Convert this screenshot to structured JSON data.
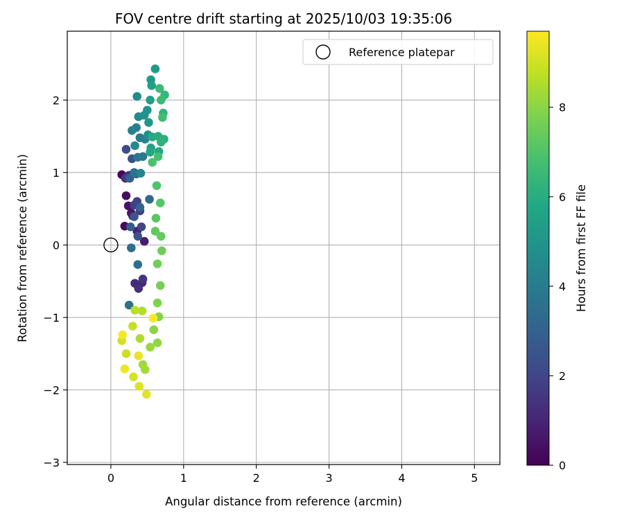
{
  "chart_data": {
    "type": "scatter",
    "title": "FOV centre drift starting at 2025/10/03 19:35:06",
    "xlabel": "Angular distance from reference (arcmin)",
    "ylabel": "Rotation from reference (arcmin)",
    "xlim": [
      -0.6,
      5.35
    ],
    "ylim": [
      -3.03,
      2.95
    ],
    "xticks": [
      0,
      1,
      2,
      3,
      4,
      5
    ],
    "yticks": [
      -3,
      -2,
      -1,
      0,
      1,
      2
    ],
    "grid": true,
    "legend": {
      "position": "top-right",
      "entries": [
        "Reference platepar"
      ]
    },
    "reference_point": {
      "x": 0,
      "y": 0
    },
    "colorbar": {
      "label": "Hours from first FF file",
      "colormap": "viridis",
      "range": [
        0,
        9.7
      ],
      "ticks": [
        0,
        2,
        4,
        6,
        8
      ]
    },
    "points": [
      [
        0.15,
        0.97,
        0.2
      ],
      [
        0.19,
        0.26,
        0.3
      ],
      [
        0.21,
        0.68,
        0.4
      ],
      [
        0.24,
        0.54,
        0.5
      ],
      [
        0.28,
        0.44,
        0.6
      ],
      [
        0.3,
        0.4,
        0.7
      ],
      [
        0.46,
        0.05,
        0.8
      ],
      [
        0.36,
        0.19,
        0.9
      ],
      [
        0.25,
        0.96,
        1.0
      ],
      [
        0.43,
        -0.52,
        1.1
      ],
      [
        0.33,
        -0.53,
        1.2
      ],
      [
        0.38,
        -0.6,
        1.3
      ],
      [
        0.23,
        0.95,
        1.4
      ],
      [
        0.44,
        -0.47,
        1.5
      ],
      [
        0.2,
        0.92,
        1.6
      ],
      [
        0.4,
        0.47,
        1.7
      ],
      [
        0.32,
        0.55,
        1.8
      ],
      [
        0.36,
        0.6,
        1.9
      ],
      [
        0.42,
        0.25,
        2.0
      ],
      [
        0.21,
        1.32,
        2.2
      ],
      [
        0.29,
        1.19,
        2.4
      ],
      [
        0.37,
        0.12,
        2.5
      ],
      [
        0.32,
        0.39,
        2.6
      ],
      [
        0.27,
        0.25,
        2.8
      ],
      [
        0.26,
        0.92,
        3.0
      ],
      [
        0.4,
        0.52,
        3.1
      ],
      [
        0.35,
        0.98,
        3.2
      ],
      [
        0.53,
        0.63,
        3.3
      ],
      [
        0.28,
        -0.04,
        3.4
      ],
      [
        0.37,
        -0.27,
        3.5
      ],
      [
        0.25,
        -0.83,
        3.6
      ],
      [
        0.32,
        1.0,
        3.7
      ],
      [
        0.37,
        1.21,
        3.8
      ],
      [
        0.44,
        1.22,
        3.9
      ],
      [
        0.4,
        1.48,
        4.0
      ],
      [
        0.35,
        1.62,
        4.1
      ],
      [
        0.29,
        1.58,
        4.2
      ],
      [
        0.47,
        1.46,
        4.3
      ],
      [
        0.41,
        0.99,
        4.4
      ],
      [
        0.33,
        1.37,
        4.5
      ],
      [
        0.38,
        1.77,
        4.6
      ],
      [
        0.36,
        2.05,
        4.7
      ],
      [
        0.51,
        1.52,
        4.8
      ],
      [
        0.46,
        1.79,
        4.9
      ],
      [
        0.5,
        1.86,
        5.0
      ],
      [
        0.52,
        1.69,
        5.1
      ],
      [
        0.55,
        2.28,
        5.2
      ],
      [
        0.61,
        2.43,
        5.3
      ],
      [
        0.54,
        2.0,
        5.4
      ],
      [
        0.56,
        2.2,
        5.5
      ],
      [
        0.55,
        1.34,
        5.6
      ],
      [
        0.54,
        1.28,
        5.7
      ],
      [
        0.66,
        1.29,
        5.8
      ],
      [
        0.57,
        1.49,
        5.9
      ],
      [
        0.65,
        1.5,
        6.0
      ],
      [
        0.73,
        1.46,
        6.1
      ],
      [
        0.69,
        1.42,
        6.2
      ],
      [
        0.72,
        1.82,
        6.3
      ],
      [
        0.74,
        2.07,
        6.4
      ],
      [
        0.67,
        2.16,
        6.5
      ],
      [
        0.69,
        2.0,
        6.6
      ],
      [
        0.71,
        1.76,
        6.7
      ],
      [
        0.65,
        1.22,
        6.8
      ],
      [
        0.57,
        1.14,
        6.9
      ],
      [
        0.63,
        0.82,
        7.0
      ],
      [
        0.68,
        0.58,
        7.1
      ],
      [
        0.62,
        0.37,
        7.2
      ],
      [
        0.61,
        0.19,
        7.3
      ],
      [
        0.69,
        0.12,
        7.4
      ],
      [
        0.7,
        -0.08,
        7.5
      ],
      [
        0.64,
        -0.26,
        7.6
      ],
      [
        0.68,
        -0.56,
        7.7
      ],
      [
        0.64,
        -0.8,
        7.8
      ],
      [
        0.66,
        -0.99,
        7.9
      ],
      [
        0.59,
        -1.17,
        8.0
      ],
      [
        0.64,
        -1.35,
        8.1
      ],
      [
        0.54,
        -1.41,
        8.2
      ],
      [
        0.44,
        -1.65,
        8.3
      ],
      [
        0.47,
        -1.72,
        8.4
      ],
      [
        0.4,
        -1.29,
        8.5
      ],
      [
        0.43,
        -0.91,
        8.6
      ],
      [
        0.33,
        -0.9,
        8.7
      ],
      [
        0.3,
        -1.12,
        8.8
      ],
      [
        0.21,
        -1.5,
        8.9
      ],
      [
        0.15,
        -1.32,
        9.0
      ],
      [
        0.31,
        -1.82,
        9.1
      ],
      [
        0.39,
        -1.95,
        9.2
      ],
      [
        0.49,
        -2.06,
        9.3
      ],
      [
        0.38,
        -1.53,
        9.4
      ],
      [
        0.19,
        -1.71,
        9.5
      ],
      [
        0.16,
        -1.24,
        9.6
      ],
      [
        0.58,
        -1.01,
        9.7
      ]
    ]
  }
}
